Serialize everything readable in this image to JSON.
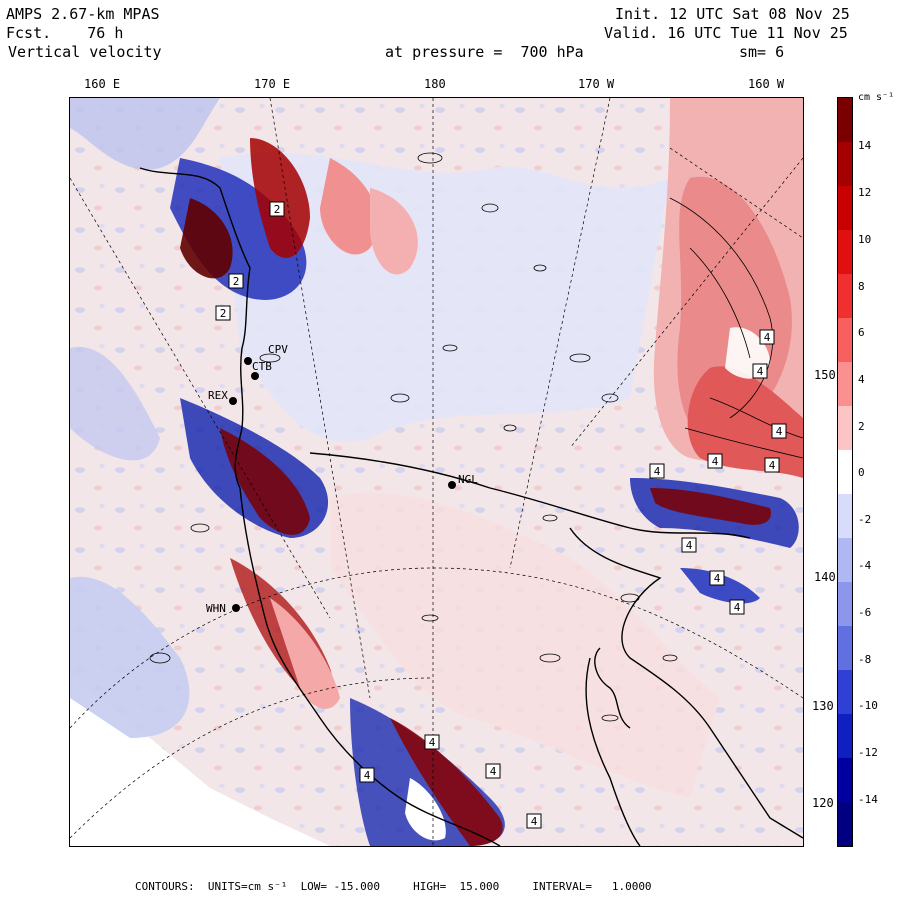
{
  "header": {
    "model": "AMPS 2.67-km MPAS",
    "fcst": "Fcst.    76 h",
    "field": "Vertical velocity",
    "init": "Init. 12 UTC Sat 08 Nov 25",
    "valid": "Valid. 16 UTC Tue 11 Nov 25",
    "level": "at pressure =  700 hPa",
    "smooth": "sm= 6"
  },
  "lon_labels": [
    "160 E",
    "170 E",
    "180",
    "170 W",
    "160 W"
  ],
  "lat_labels": [
    "150 W",
    "140 W",
    "130 W",
    "120 W"
  ],
  "stations": [
    "CPV",
    "CTB",
    "REX",
    "NGL",
    "WHN"
  ],
  "box_labels": [
    "4",
    "4",
    "4",
    "4",
    "4",
    "4",
    "4",
    "4",
    "4",
    "4",
    "2",
    "2",
    "2",
    "4",
    "4",
    "4"
  ],
  "colorbar": {
    "units": "cm s⁻¹",
    "ticks": [
      "14",
      "12",
      "10",
      "8",
      "6",
      "4",
      "2",
      "0",
      "-2",
      "-4",
      "-6",
      "-8",
      "-10",
      "-12",
      "-14"
    ],
    "colors": [
      "#7a0000",
      "#a40000",
      "#c80000",
      "#e01010",
      "#f03030",
      "#f86060",
      "#fa9090",
      "#fcc4c4",
      "#ffffff",
      "#d8dcfa",
      "#b0b8f4",
      "#8c96ea",
      "#6070e0",
      "#3040d4",
      "#1020c0",
      "#0000a0",
      "#000080"
    ]
  },
  "footer": "CONTOURS:  UNITS=cm s⁻¹  LOW= -15.000     HIGH=  15.000     INTERVAL=   1.0000",
  "colors": {
    "pos_strong": "#b00000",
    "pos_light": "#f7cfcf",
    "neg_light": "#c8ccf2",
    "neg_strong": "#1a2ab8"
  }
}
